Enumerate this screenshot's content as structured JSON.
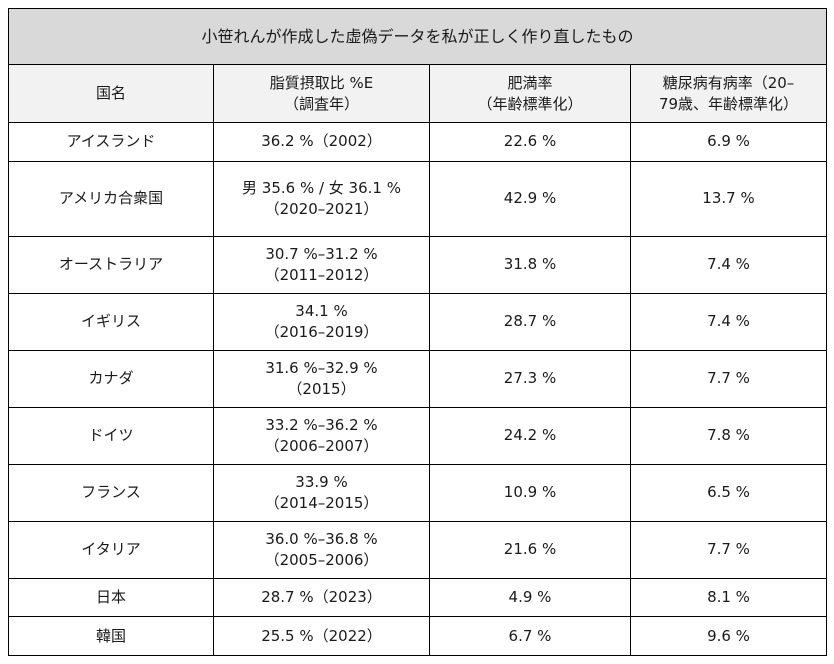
{
  "title": "小笹れんが作成した虚偽データを私が正しく作り直したもの",
  "headers": [
    [
      "国名"
    ],
    [
      "脂質摂取比 %E",
      "（調査年）"
    ],
    [
      "肥満率",
      "（年齢標準化）"
    ],
    [
      "糖尿病有病率（20–",
      "79歳、年齢標準化）"
    ]
  ],
  "rows": [
    {
      "country": "アイスランド",
      "fat": [
        "36.2 %（2002）"
      ],
      "obesity": "22.6 %",
      "diabetes": "6.9 %"
    },
    {
      "country": "アメリカ合衆国",
      "fat": [
        "男 35.6 % / 女 36.1 %",
        "（2020–2021）"
      ],
      "obesity": "42.9 %",
      "diabetes": "13.7 %"
    },
    {
      "country": "オーストラリア",
      "fat": [
        "30.7 %–31.2 %",
        "（2011–2012）"
      ],
      "obesity": "31.8 %",
      "diabetes": "7.4 %"
    },
    {
      "country": "イギリス",
      "fat": [
        "34.1 %",
        "（2016–2019）"
      ],
      "obesity": "28.7 %",
      "diabetes": "7.4 %"
    },
    {
      "country": "カナダ",
      "fat": [
        "31.6 %–32.9 %",
        "（2015）"
      ],
      "obesity": "27.3 %",
      "diabetes": "7.7 %"
    },
    {
      "country": "ドイツ",
      "fat": [
        "33.2 %–36.2 %",
        "（2006–2007）"
      ],
      "obesity": "24.2 %",
      "diabetes": "7.8 %"
    },
    {
      "country": "フランス",
      "fat": [
        "33.9 %",
        "（2014–2015）"
      ],
      "obesity": "10.9 %",
      "diabetes": "6.5 %"
    },
    {
      "country": "イタリア",
      "fat": [
        "36.0 %–36.8 %",
        "（2005–2006）"
      ],
      "obesity": "21.6 %",
      "diabetes": "7.7 %"
    },
    {
      "country": "日本",
      "fat": [
        "28.7 %（2023）"
      ],
      "obesity": "4.9 %",
      "diabetes": "8.1 %"
    },
    {
      "country": "韓国",
      "fat": [
        "25.5 %（2022）"
      ],
      "obesity": "6.7 %",
      "diabetes": "9.6 %"
    }
  ]
}
